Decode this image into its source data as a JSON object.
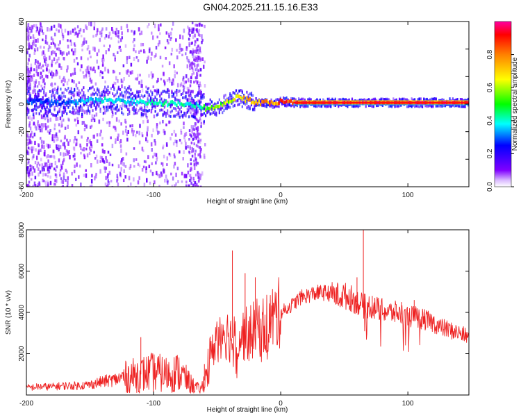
{
  "title": "GN04.2025.211.15.16.E33",
  "chart_data": [
    {
      "type": "heatmap",
      "xlabel": "Height of straight line (km)",
      "ylabel": "Frequency (Hz)",
      "xlim": [
        -200,
        148
      ],
      "ylim": [
        -60,
        60
      ],
      "x_ticks": [
        -200,
        -100,
        0,
        100
      ],
      "x_tick_labels": [
        "-200",
        "-100",
        "0",
        "100"
      ],
      "y_ticks": [
        -60,
        -40,
        -20,
        0,
        20,
        40,
        60
      ],
      "y_tick_labels": [
        "-60",
        "-40",
        "-20",
        "0",
        "20",
        "40",
        "60"
      ],
      "colorbar": {
        "label": "Normalized spectral amplitude",
        "range": [
          0,
          1
        ],
        "ticks": [
          0.0,
          0.2,
          0.4,
          0.6,
          0.8
        ],
        "tick_labels": [
          "0.0",
          "0.2",
          "0.4",
          "0.6",
          "0.8"
        ],
        "colormap": "rainbow"
      },
      "ridge": {
        "x": [
          -200,
          -180,
          -160,
          -140,
          -120,
          -100,
          -80,
          -66,
          -60,
          -50,
          -40,
          -35,
          -30,
          -20,
          -10,
          -5,
          0,
          10,
          20,
          40,
          60,
          80,
          100,
          148
        ],
        "frequency": [
          2,
          1,
          2,
          3,
          2,
          1,
          0,
          -1,
          -3,
          -2,
          3,
          5,
          4,
          1,
          1,
          0,
          2,
          1,
          1,
          1,
          1,
          1,
          1,
          1
        ],
        "amplitude": [
          0.3,
          0.3,
          0.35,
          0.4,
          0.4,
          0.45,
          0.45,
          0.4,
          0.55,
          0.6,
          0.65,
          0.7,
          0.75,
          0.8,
          0.85,
          0.85,
          0.9,
          0.95,
          0.95,
          0.95,
          0.95,
          0.95,
          0.95,
          0.95
        ]
      },
      "grid": false
    },
    {
      "type": "line",
      "xlabel": "Height of straight line (km)",
      "ylabel": "SNR (10 * v/v)",
      "xlim": [
        -200,
        148
      ],
      "ylim": [
        0,
        8000
      ],
      "x_ticks": [
        -200,
        -100,
        0,
        100
      ],
      "x_tick_labels": [
        "-200",
        "-100",
        "0",
        "100"
      ],
      "y_ticks": [
        2000,
        4000,
        6000,
        8000
      ],
      "y_tick_labels": [
        "2000",
        "4000",
        "6000",
        "8000"
      ],
      "color": "#ee2222",
      "series": [
        {
          "x": [
            -200,
            -190,
            -180,
            -170,
            -160,
            -150,
            -140,
            -130,
            -120,
            -110,
            -100,
            -90,
            -80,
            -70,
            -63,
            -60,
            -55,
            -50,
            -45,
            -40,
            -35,
            -30,
            -25,
            -20,
            -15,
            -10,
            -5,
            0,
            5,
            10,
            15,
            20,
            25,
            30,
            35,
            40,
            45,
            50,
            55,
            60,
            65,
            70,
            75,
            80,
            85,
            90,
            95,
            100,
            105,
            110,
            115,
            120,
            125,
            130,
            135,
            140,
            148
          ],
          "y": [
            350,
            400,
            400,
            450,
            450,
            500,
            650,
            750,
            900,
            1000,
            1100,
            1000,
            1100,
            500,
            250,
            700,
            1800,
            3000,
            3200,
            2800,
            2700,
            2900,
            3000,
            3200,
            3300,
            3500,
            3800,
            4000,
            4200,
            4400,
            4700,
            4800,
            4900,
            4950,
            4950,
            4900,
            4800,
            4800,
            4700,
            4500,
            4300,
            4300,
            4200,
            4100,
            4000,
            4000,
            3900,
            3800,
            3800,
            3700,
            3600,
            3500,
            3300,
            3200,
            3100,
            3000,
            2800
          ]
        }
      ],
      "spikes": [
        {
          "x": -110,
          "y": 2800
        },
        {
          "x": -60,
          "y": 1500
        },
        {
          "x": -38,
          "y": 7000
        },
        {
          "x": -28,
          "y": 5900
        },
        {
          "x": -20,
          "y": 5700
        },
        {
          "x": 65,
          "y": 8000
        },
        {
          "x": 60,
          "y": 5700
        },
        {
          "x": 72,
          "y": 4800
        },
        {
          "x": 95,
          "y": 4500
        },
        {
          "x": 105,
          "y": 4600
        }
      ],
      "grid": false
    }
  ]
}
